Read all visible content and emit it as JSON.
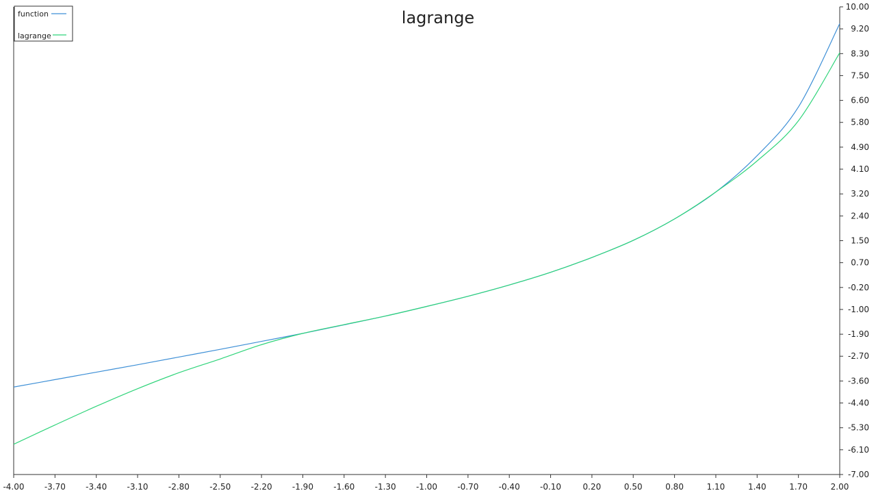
{
  "chart_data": {
    "type": "line",
    "title": "lagrange",
    "xlabel": "",
    "ylabel": "",
    "xlim": [
      -4.0,
      2.0
    ],
    "ylim": [
      -7.0,
      10.0
    ],
    "x_ticks": [
      "-4.00",
      "-3.70",
      "-3.40",
      "-3.10",
      "-2.80",
      "-2.50",
      "-2.20",
      "-1.90",
      "-1.60",
      "-1.30",
      "-1.00",
      "-0.70",
      "-0.40",
      "-0.10",
      "0.20",
      "0.50",
      "0.80",
      "1.10",
      "1.40",
      "1.70",
      "2.00"
    ],
    "y_ticks": [
      "10.00",
      "9.20",
      "8.30",
      "7.50",
      "6.60",
      "5.80",
      "4.90",
      "4.10",
      "3.20",
      "2.40",
      "1.50",
      "0.70",
      "-0.20",
      "-1.00",
      "-1.90",
      "-2.70",
      "-3.60",
      "-4.40",
      "-5.30",
      "-6.10",
      "-7.00"
    ],
    "y_axis_position": "right",
    "grid": false,
    "legend_position": "top-left",
    "x": [
      -4.0,
      -3.7,
      -3.4,
      -3.1,
      -2.8,
      -2.5,
      -2.2,
      -1.9,
      -1.6,
      -1.3,
      -1.0,
      -0.7,
      -0.4,
      -0.1,
      0.2,
      0.5,
      0.8,
      1.1,
      1.4,
      1.7,
      2.0
    ],
    "series": [
      {
        "name": "function",
        "color": "#3d8fd6",
        "values": [
          -3.82,
          -3.55,
          -3.28,
          -3.01,
          -2.73,
          -2.45,
          -2.16,
          -1.87,
          -1.56,
          -1.24,
          -0.89,
          -0.52,
          -0.11,
          0.35,
          0.89,
          1.51,
          2.29,
          3.27,
          4.59,
          6.36,
          9.39
        ]
      },
      {
        "name": "lagrange",
        "color": "#2fd47a",
        "values": [
          -5.9,
          -5.2,
          -4.52,
          -3.88,
          -3.3,
          -2.8,
          -2.28,
          -1.87,
          -1.55,
          -1.24,
          -0.89,
          -0.52,
          -0.11,
          0.35,
          0.89,
          1.51,
          2.29,
          3.27,
          4.4,
          5.86,
          8.33
        ]
      }
    ]
  }
}
